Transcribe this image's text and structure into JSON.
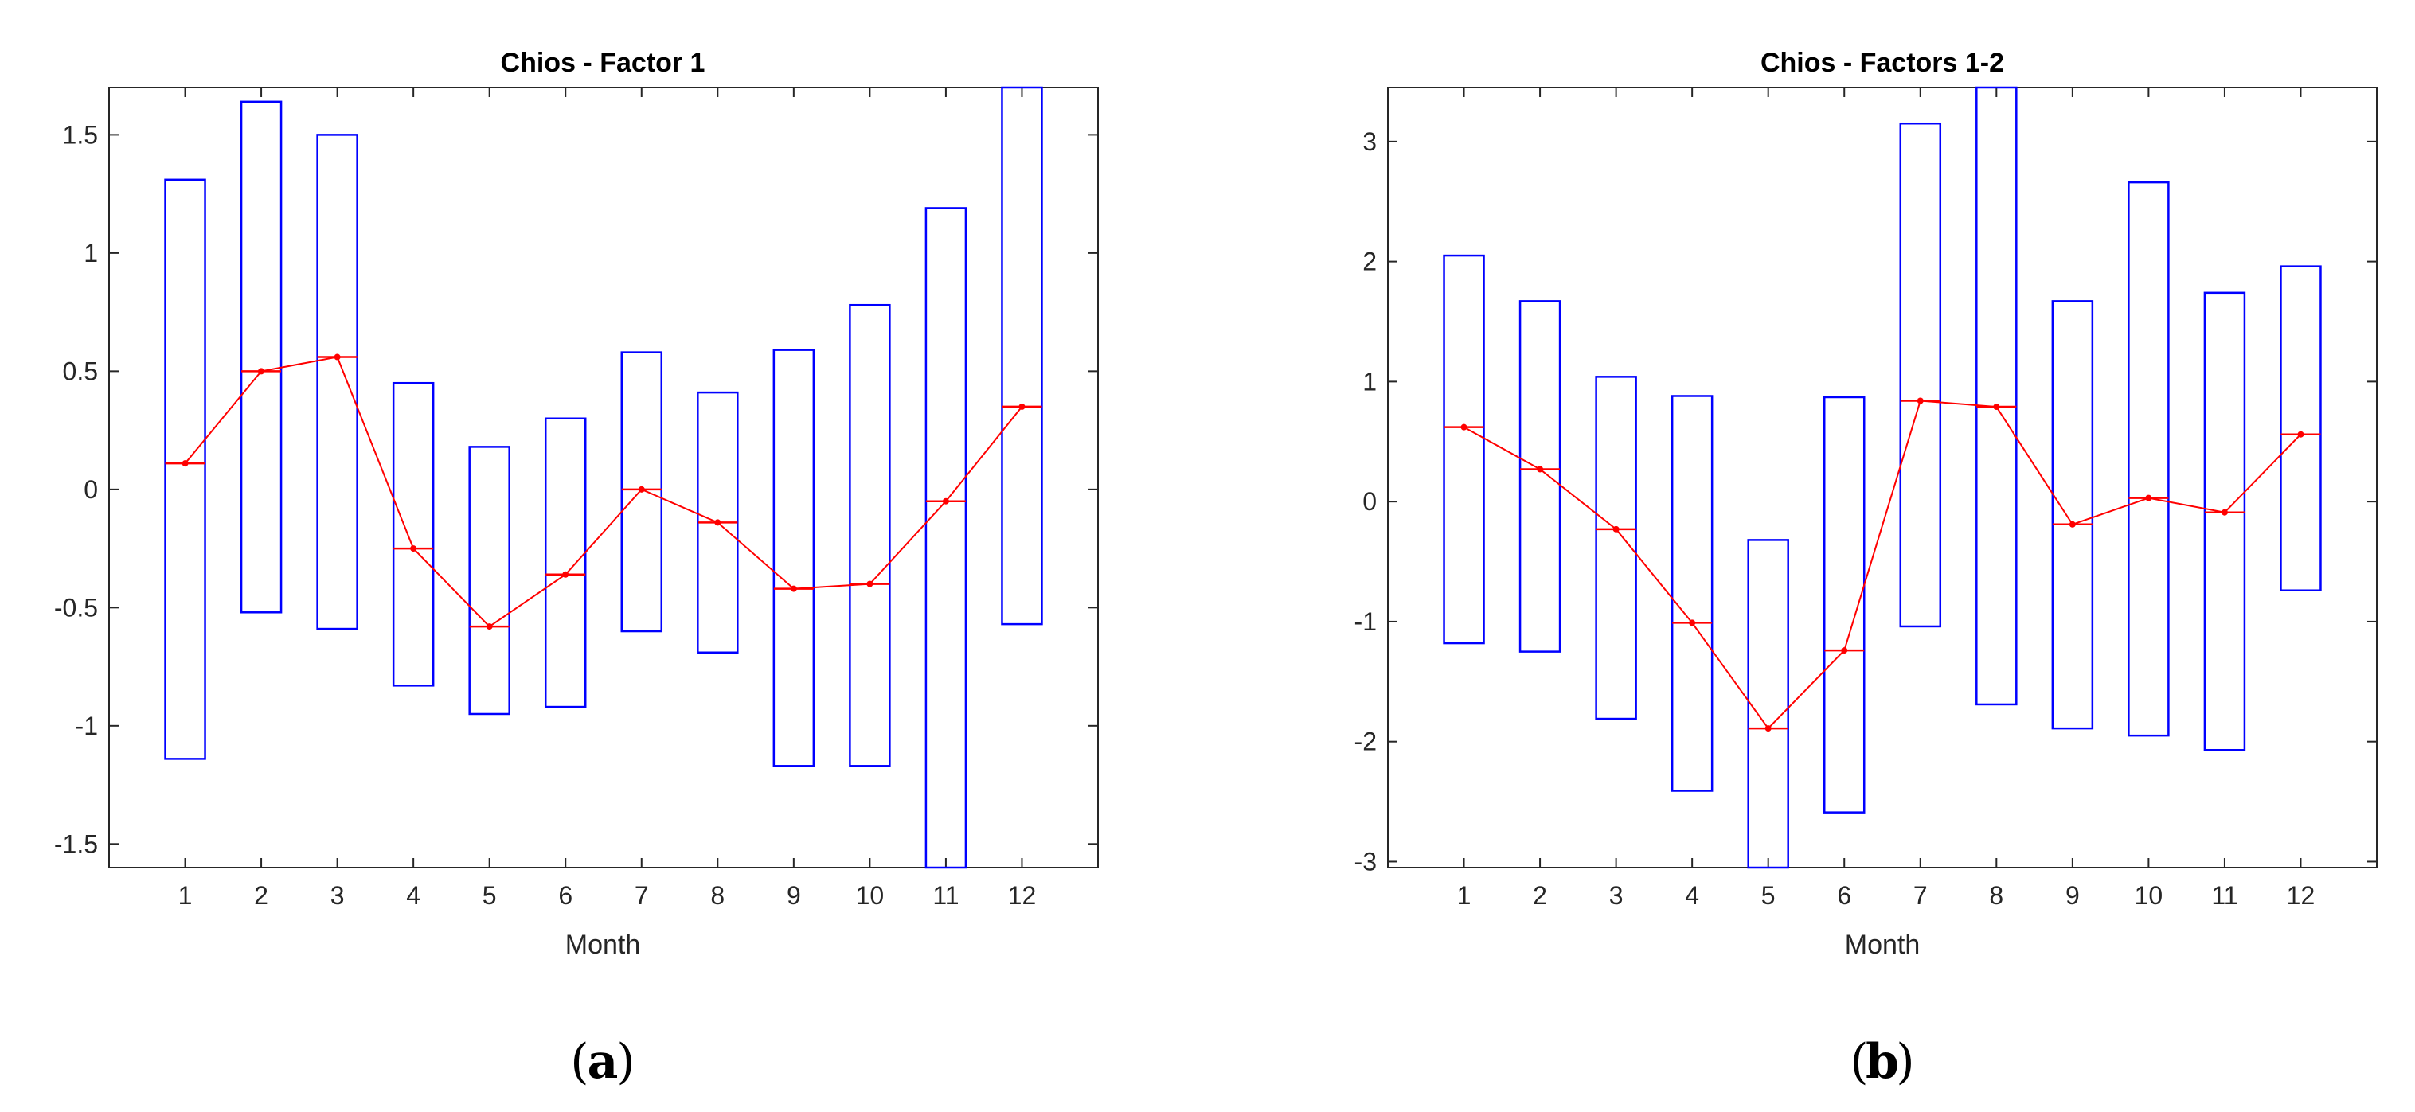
{
  "chart_data": [
    {
      "type": "box",
      "title": "Chios - Factor 1",
      "xlabel": "Month",
      "ylabel": "",
      "caption": "a",
      "categories": [
        1,
        2,
        3,
        4,
        5,
        6,
        7,
        8,
        9,
        10,
        11,
        12
      ],
      "ylim": [
        -1.6,
        1.7
      ],
      "yticks": [
        -1.5,
        -1,
        -0.5,
        0,
        0.5,
        1,
        1.5
      ],
      "box_color": "#0000ff",
      "line_color": "#ff0000",
      "series": [
        {
          "name": "",
          "center": [
            0.11,
            0.5,
            0.56,
            -0.25,
            -0.58,
            -0.36,
            0.0,
            -0.14,
            -0.42,
            -0.4,
            -0.05,
            0.35
          ],
          "upper": [
            1.31,
            1.64,
            1.5,
            0.45,
            0.18,
            0.3,
            0.58,
            0.41,
            0.59,
            0.78,
            1.19,
            1.7
          ],
          "lower": [
            -1.14,
            -0.52,
            -0.59,
            -0.83,
            -0.95,
            -0.92,
            -0.6,
            -0.69,
            -1.17,
            -1.17,
            -1.6,
            -0.57
          ]
        }
      ]
    },
    {
      "type": "box",
      "title": "Chios - Factors 1-2",
      "xlabel": "Month",
      "ylabel": "",
      "caption": "b",
      "categories": [
        1,
        2,
        3,
        4,
        5,
        6,
        7,
        8,
        9,
        10,
        11,
        12
      ],
      "ylim": [
        -3.05,
        3.45
      ],
      "yticks": [
        -3,
        -2,
        -1,
        0,
        1,
        2,
        3
      ],
      "box_color": "#0000ff",
      "line_color": "#ff0000",
      "series": [
        {
          "name": "",
          "center": [
            0.62,
            0.27,
            -0.23,
            -1.01,
            -1.89,
            -1.24,
            0.84,
            0.79,
            -0.19,
            0.03,
            -0.09,
            0.56
          ],
          "upper": [
            2.05,
            1.67,
            1.04,
            0.88,
            -0.32,
            0.87,
            3.15,
            3.45,
            1.67,
            2.66,
            1.74,
            1.96
          ],
          "lower": [
            -1.18,
            -1.25,
            -1.81,
            -2.41,
            -3.05,
            -2.59,
            -1.04,
            -1.69,
            -1.89,
            -1.95,
            -2.07,
            -0.74
          ]
        }
      ]
    }
  ]
}
